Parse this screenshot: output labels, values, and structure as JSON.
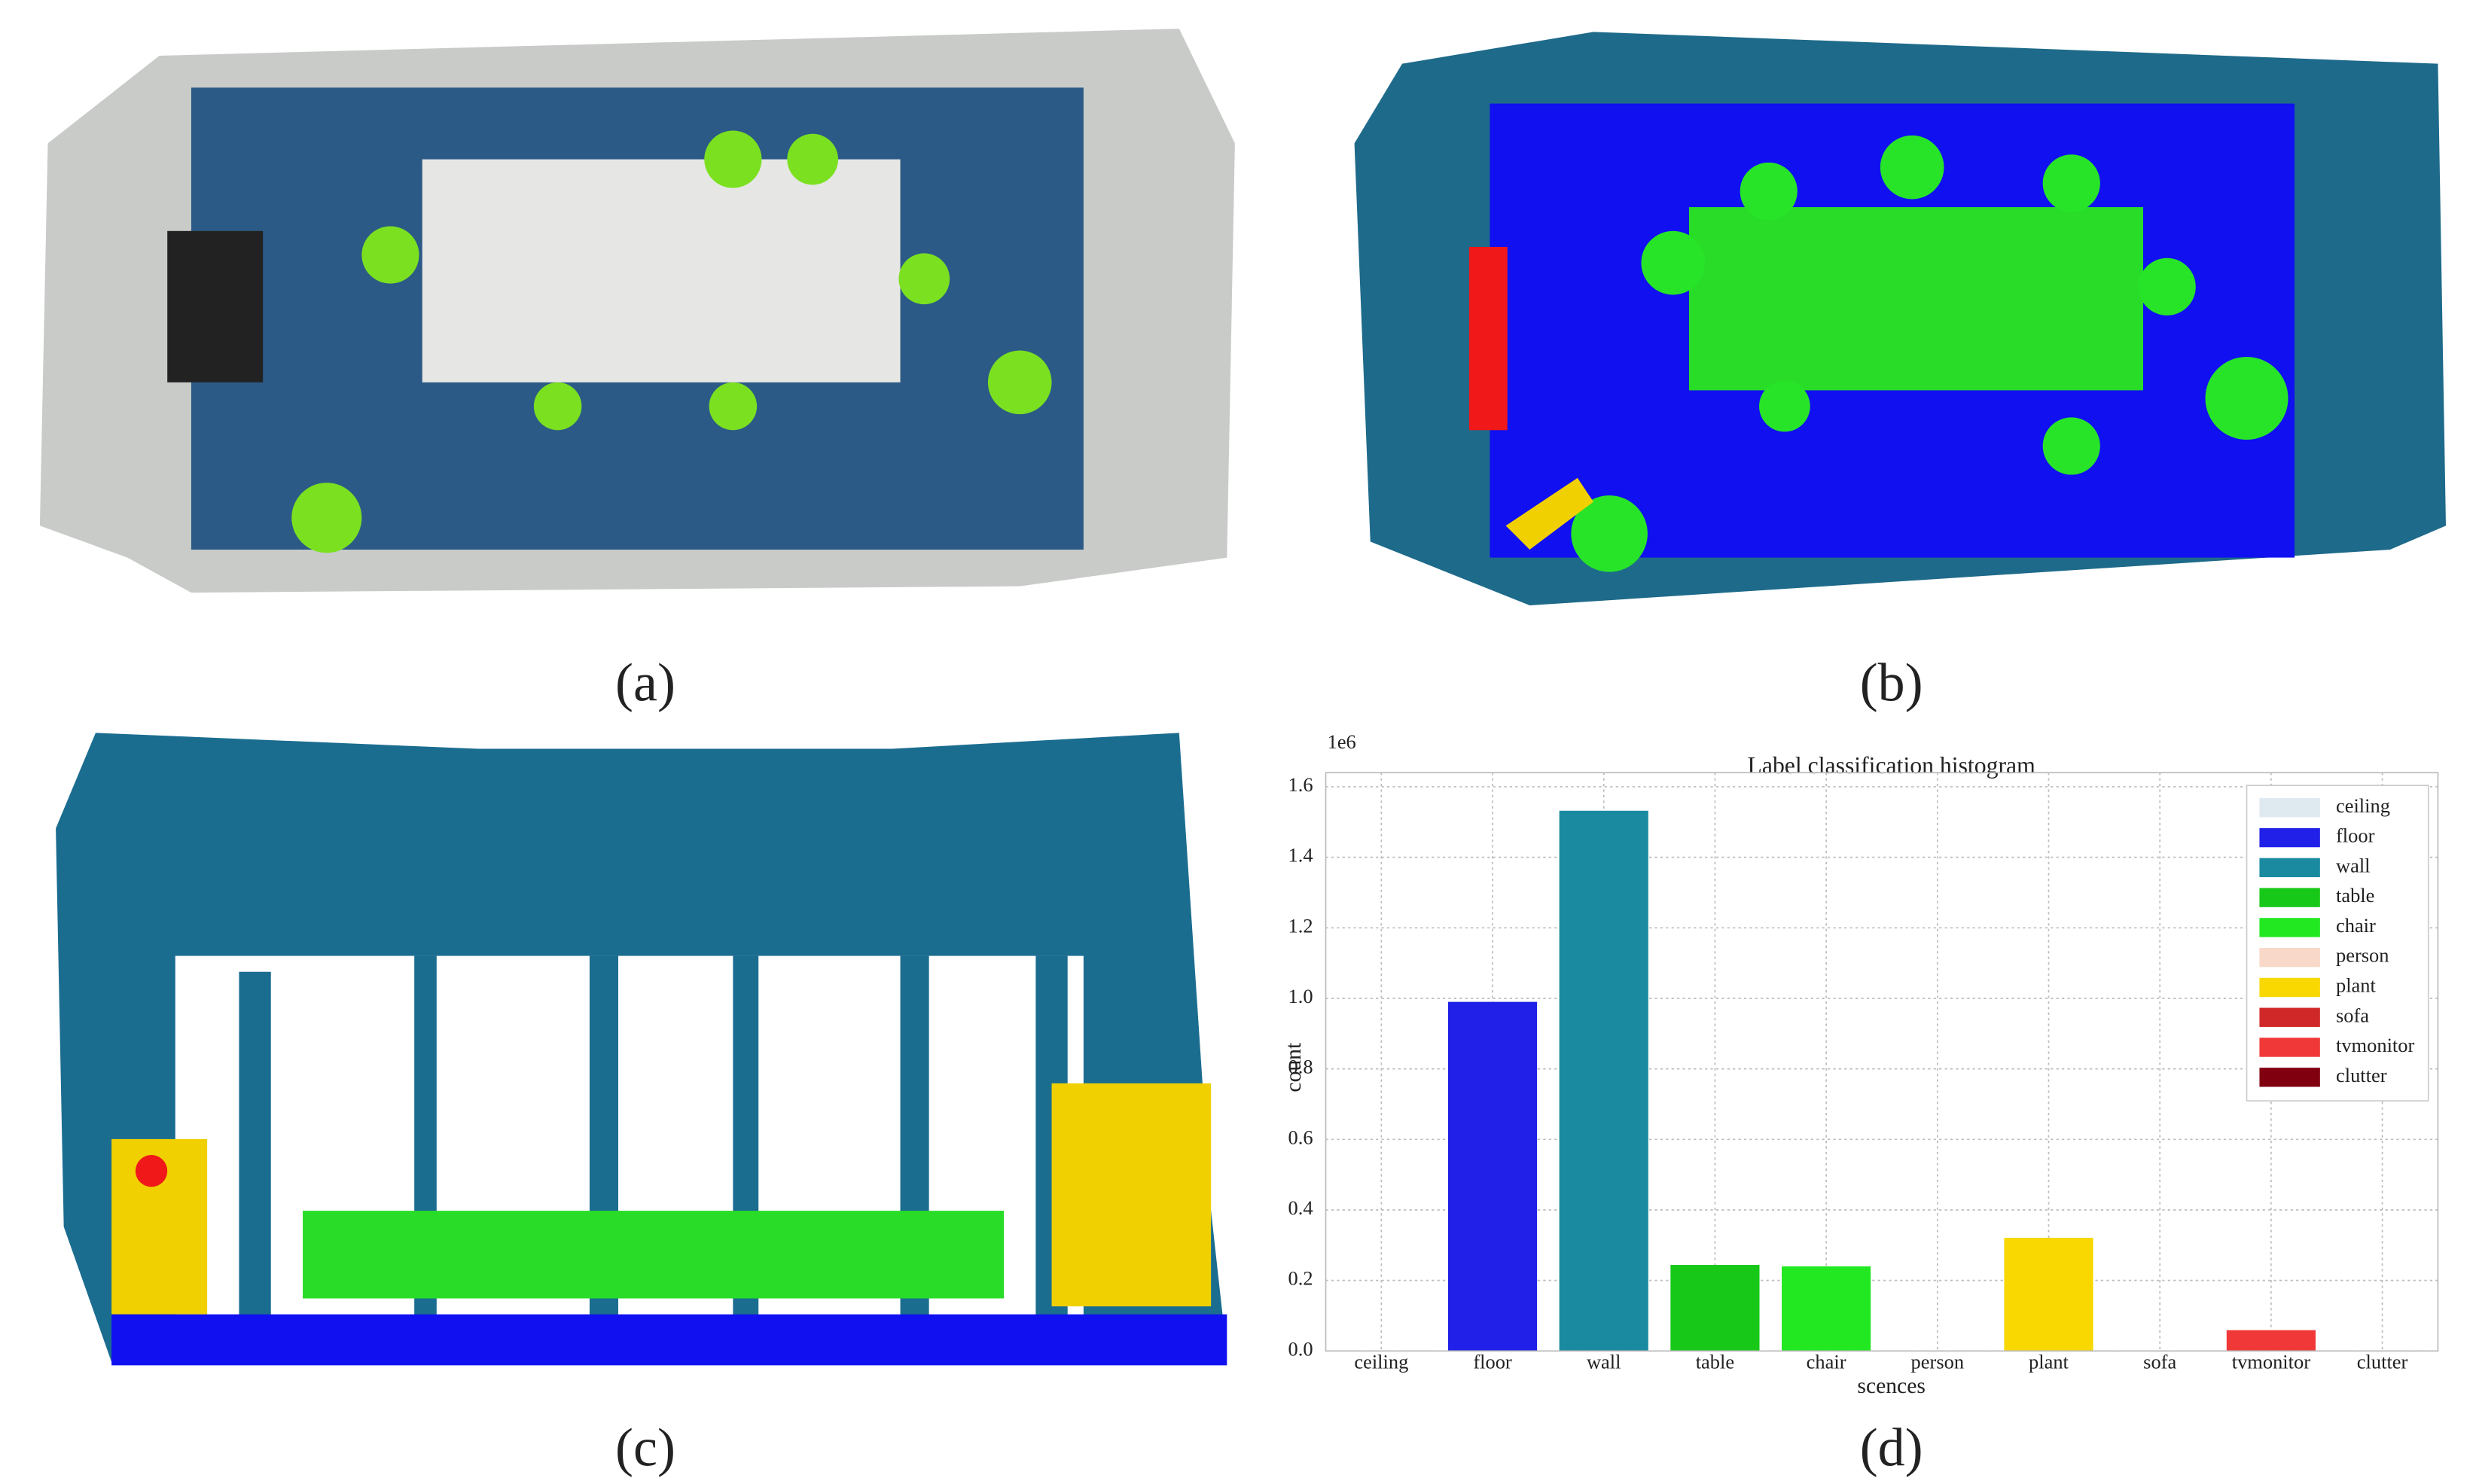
{
  "panels": [
    {
      "label": "(a)"
    },
    {
      "label": "(b)"
    },
    {
      "label": "(c)"
    },
    {
      "label": "(d)"
    }
  ],
  "chart_data": {
    "type": "bar",
    "title": "Label classification histogram",
    "x_label": "scences",
    "y_label": "count",
    "y_offset_text": "1e6",
    "categories": [
      "ceiling",
      "floor",
      "wall",
      "table",
      "chair",
      "person",
      "plant",
      "sofa",
      "tvmonitor",
      "clutter"
    ],
    "values": [
      0,
      0.99,
      1.532,
      0.244,
      0.24,
      0,
      0.321,
      0,
      0.059,
      0
    ],
    "colors": [
      "#dfe9f0",
      "#2020e8",
      "#1a8aa0",
      "#18c818",
      "#22e822",
      "#f8d8c8",
      "#f8d800",
      "#d02828",
      "#f03838",
      "#800010"
    ],
    "ylim": [
      0,
      1.64
    ],
    "yticks": [
      {
        "value": 0,
        "label": "0.0"
      },
      0.2,
      0.4,
      0.6,
      0.8,
      {
        "value": 1,
        "label": "1.0"
      },
      1.2,
      1.4,
      1.6
    ],
    "grid": true,
    "legend": "upper right"
  }
}
